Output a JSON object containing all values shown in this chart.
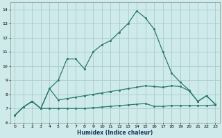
{
  "xlabel": "Humidex (Indice chaleur)",
  "xlim": [
    -0.5,
    23.5
  ],
  "ylim": [
    6,
    14.5
  ],
  "yticks": [
    6,
    7,
    8,
    9,
    10,
    11,
    12,
    13,
    14
  ],
  "xticks": [
    0,
    1,
    2,
    3,
    4,
    5,
    6,
    7,
    8,
    9,
    10,
    11,
    12,
    13,
    14,
    15,
    16,
    17,
    18,
    19,
    20,
    21,
    22,
    23
  ],
  "background_color": "#ceeaea",
  "grid_color": "#aacccc",
  "line_color": "#2a7a6a",
  "curve_main_x": [
    0,
    1,
    2,
    3,
    4,
    5,
    6,
    7,
    8,
    9,
    10,
    11,
    12,
    13,
    14,
    15,
    16,
    17,
    18,
    19,
    20,
    21,
    22,
    23
  ],
  "curve_main_y": [
    6.5,
    7.1,
    7.5,
    7.0,
    8.4,
    9.0,
    10.5,
    10.5,
    9.8,
    11.0,
    11.5,
    11.8,
    12.4,
    13.0,
    13.9,
    13.4,
    12.6,
    11.0,
    9.5,
    8.85,
    8.3,
    7.5,
    7.9,
    7.3
  ],
  "curve_mid_x": [
    0,
    1,
    2,
    3,
    4,
    5,
    6,
    7,
    8,
    9,
    10,
    11,
    12,
    13,
    14,
    15,
    16,
    17,
    18,
    19,
    20,
    21,
    22,
    23
  ],
  "curve_mid_y": [
    6.5,
    7.1,
    7.5,
    7.0,
    8.4,
    7.6,
    7.7,
    7.8,
    7.9,
    8.0,
    8.1,
    8.2,
    8.3,
    8.4,
    8.5,
    8.6,
    8.55,
    8.5,
    8.6,
    8.55,
    8.25,
    7.5,
    7.9,
    7.3
  ],
  "curve_bot_x": [
    0,
    1,
    2,
    3,
    4,
    5,
    6,
    7,
    8,
    9,
    10,
    11,
    12,
    13,
    14,
    15,
    16,
    17,
    18,
    19,
    20,
    21,
    22,
    23
  ],
  "curve_bot_y": [
    6.5,
    7.1,
    7.5,
    7.0,
    7.0,
    7.0,
    7.0,
    7.0,
    7.0,
    7.05,
    7.1,
    7.15,
    7.2,
    7.25,
    7.3,
    7.35,
    7.15,
    7.15,
    7.2,
    7.2,
    7.2,
    7.2,
    7.2,
    7.25
  ],
  "marker_size": 2.2,
  "line_width": 0.9
}
